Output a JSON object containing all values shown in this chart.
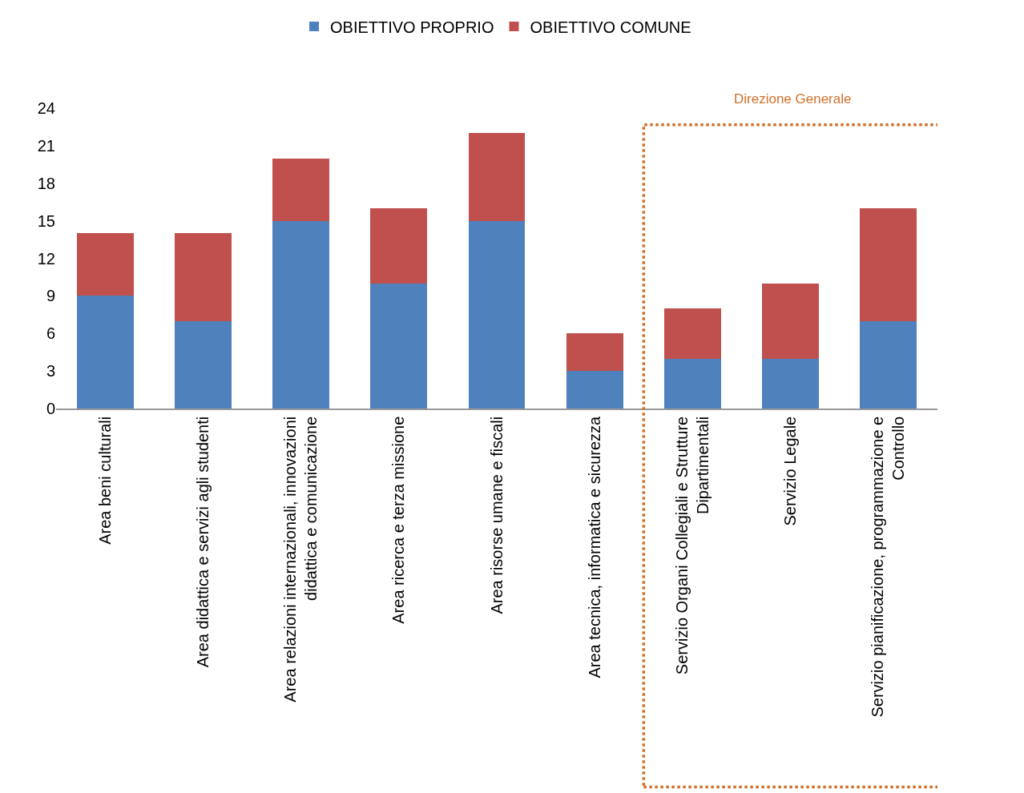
{
  "chart_data": {
    "type": "bar",
    "stacked": true,
    "categories": [
      "Area beni culturali",
      "Area didattica e servizi agli studenti",
      "Area relazioni internazionali, innovazioni didattica e comunicazione",
      "Area ricerca e terza missione",
      "Area risorse umane e fiscali",
      "Area tecnica, informatica e sicurezza",
      "Servizio Organi Collegiali e Strutture Dipartimentali",
      "Servizio Legale",
      "Servizio pianificazione, programmazione e Controllo"
    ],
    "series": [
      {
        "name": "OBIETTIVO PROPRIO",
        "color": "#4f81bd",
        "values": [
          9,
          7,
          15,
          10,
          15,
          3,
          4,
          4,
          7
        ]
      },
      {
        "name": "OBIETTIVO COMUNE",
        "color": "#c0504d",
        "values": [
          5,
          7,
          5,
          6,
          7,
          3,
          4,
          6,
          9
        ]
      }
    ],
    "ylim": [
      0,
      24
    ],
    "yticks": [
      0,
      3,
      6,
      9,
      12,
      15,
      18,
      21,
      24
    ],
    "grid": false,
    "legend": "top",
    "annotations": [
      "Direzione Generale"
    ]
  }
}
